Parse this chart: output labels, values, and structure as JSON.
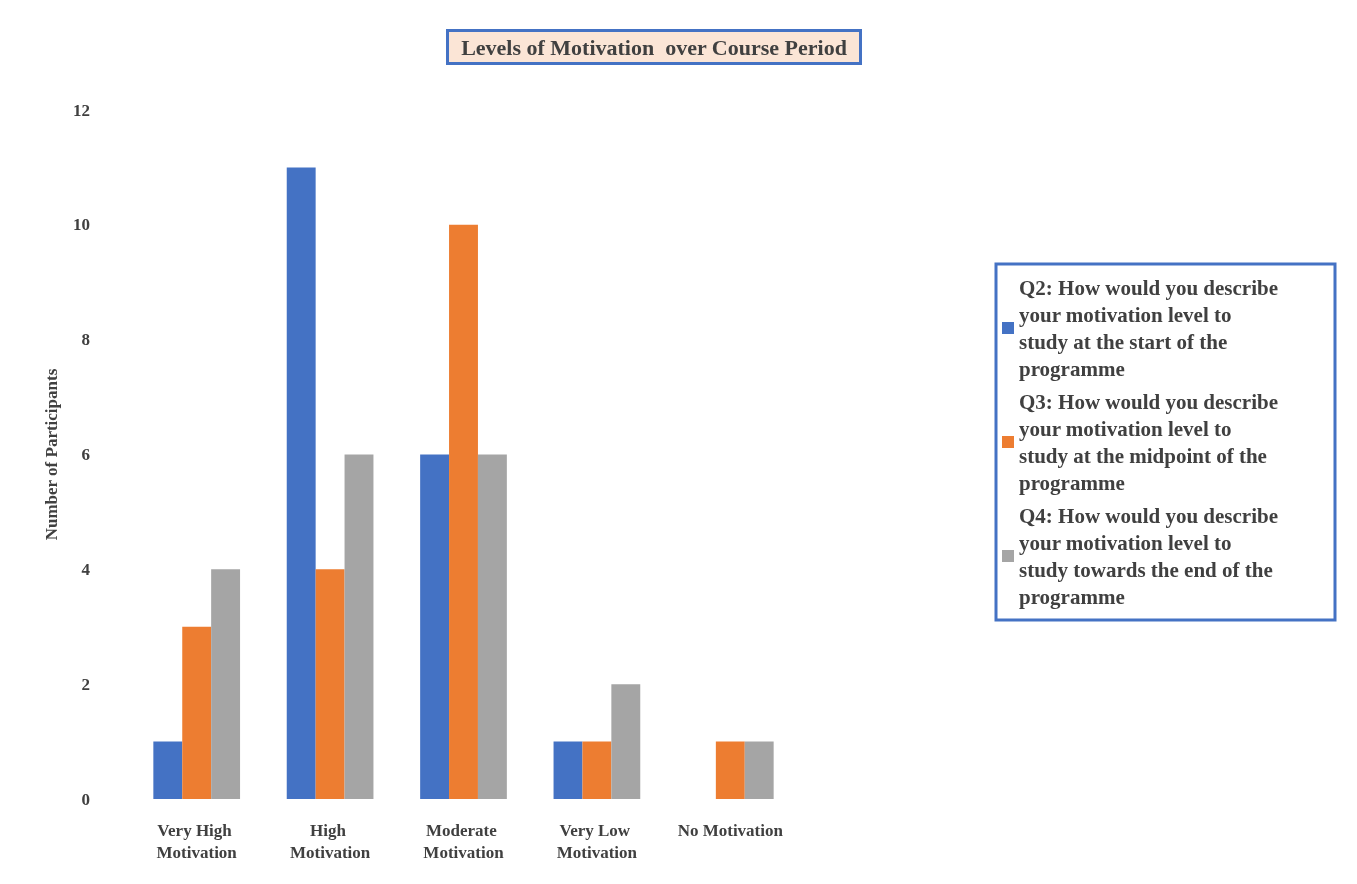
{
  "chart_data": {
    "type": "bar",
    "title": "Levels of Motivation  over Course Period",
    "ylabel": "Number of Participants",
    "categories": [
      "Very High Motivation",
      "High Motivation",
      "Moderate Motivation",
      "Very Low Motivation",
      "No Motivation"
    ],
    "series": [
      {
        "name": "Q2: How would you describe your motivation level to study at the start of the programme",
        "color": "#4472c4",
        "values": [
          1,
          11,
          6,
          1,
          0
        ]
      },
      {
        "name": "Q3: How would you describe your motivation level to study at the midpoint of the programme",
        "color": "#ed7d31",
        "values": [
          3,
          4,
          10,
          1,
          1
        ]
      },
      {
        "name": "Q4: How would you describe your motivation level to study towards the end of the programme",
        "color": "#a5a5a5",
        "values": [
          4,
          6,
          6,
          2,
          1
        ]
      }
    ],
    "ylim": [
      0,
      12
    ],
    "yticks": [
      0,
      2,
      4,
      6,
      8,
      10,
      12
    ],
    "grid": false,
    "legend": "right"
  }
}
